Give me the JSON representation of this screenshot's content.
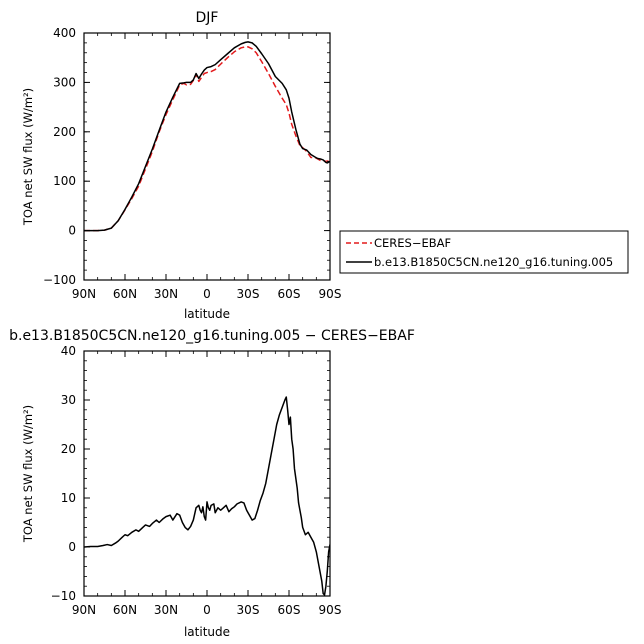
{
  "chart_data": [
    {
      "type": "line",
      "title": "DJF",
      "xlabel": "latitude",
      "ylabel": "TOA net SW flux (W/m²)",
      "xlim": [
        90,
        -90
      ],
      "ylim": [
        -100,
        400
      ],
      "xticks": [
        90,
        60,
        30,
        0,
        -30,
        -60,
        -90
      ],
      "xtick_labels": [
        "90N",
        "60N",
        "30N",
        "0",
        "30S",
        "60S",
        "90S"
      ],
      "yticks": [
        -100,
        0,
        100,
        200,
        300,
        400
      ],
      "ytick_labels": [
        "−100",
        "0",
        "100",
        "200",
        "300",
        "400"
      ],
      "grid": false,
      "legend_position": "right, outside lower",
      "series": [
        {
          "name": "CERES−EBAF",
          "color": "#e31a1c",
          "style": "dashed",
          "x": [
            90,
            85,
            80,
            75,
            70,
            65,
            60,
            55,
            50,
            45,
            40,
            35,
            30,
            25,
            20,
            17,
            15,
            12,
            10,
            8,
            6,
            4,
            2,
            0,
            -3,
            -6,
            -10,
            -15,
            -20,
            -25,
            -28,
            -30,
            -33,
            -36,
            -40,
            -45,
            -50,
            -55,
            -58,
            -60,
            -62,
            -65,
            -68,
            -70,
            -73,
            -76,
            -79,
            -81,
            -83,
            -85,
            -87,
            -88,
            -90
          ],
          "y": [
            0,
            0,
            0,
            1,
            5,
            20,
            42,
            65,
            90,
            125,
            160,
            200,
            235,
            265,
            295,
            298,
            295,
            296,
            304,
            316,
            302,
            310,
            318,
            320,
            322,
            326,
            337,
            350,
            362,
            370,
            372,
            372,
            368,
            360,
            342,
            318,
            292,
            268,
            255,
            238,
            215,
            192,
            172,
            168,
            160,
            148,
            148,
            145,
            142,
            142,
            140,
            141,
            139
          ]
        },
        {
          "name": "b.e13.B1850C5CN.ne120_g16.tuning.005",
          "color": "#000000",
          "style": "solid",
          "x": [
            90,
            85,
            80,
            75,
            70,
            65,
            60,
            55,
            50,
            45,
            40,
            35,
            30,
            25,
            20,
            17,
            15,
            12,
            10,
            8,
            6,
            4,
            2,
            0,
            -3,
            -6,
            -10,
            -15,
            -20,
            -25,
            -28,
            -30,
            -33,
            -36,
            -40,
            -45,
            -50,
            -55,
            -58,
            -60,
            -62,
            -65,
            -68,
            -70,
            -73,
            -76,
            -79,
            -81,
            -83,
            -85,
            -87,
            -88,
            -90
          ],
          "y": [
            0,
            0,
            0,
            1,
            5,
            20,
            43,
            68,
            95,
            130,
            165,
            203,
            240,
            270,
            298,
            299,
            300,
            300,
            305,
            318,
            308,
            317,
            325,
            330,
            332,
            336,
            346,
            358,
            370,
            378,
            381,
            382,
            380,
            373,
            358,
            338,
            312,
            298,
            285,
            268,
            240,
            205,
            175,
            166,
            163,
            154,
            149,
            146,
            145,
            143,
            138,
            137,
            140
          ]
        }
      ]
    },
    {
      "type": "line",
      "title": "b.e13.B1850C5CN.ne120_g16.tuning.005 − CERES−EBAF",
      "xlabel": "latitude",
      "ylabel": "TOA net SW flux (W/m²)",
      "xlim": [
        90,
        -90
      ],
      "ylim": [
        -10,
        40
      ],
      "xticks": [
        90,
        60,
        30,
        0,
        -30,
        -60,
        -90
      ],
      "xtick_labels": [
        "90N",
        "60N",
        "30N",
        "0",
        "30S",
        "60S",
        "90S"
      ],
      "yticks": [
        -10,
        0,
        10,
        20,
        30,
        40
      ],
      "ytick_labels": [
        "−10",
        "0",
        "10",
        "20",
        "30",
        "40"
      ],
      "grid": false,
      "series": [
        {
          "color": "#000000",
          "style": "solid",
          "x": [
            90,
            85,
            80,
            76,
            73,
            70,
            67,
            65,
            62,
            60,
            58,
            55,
            52,
            50,
            47,
            45,
            42,
            40,
            37,
            35,
            32,
            30,
            27,
            25,
            22,
            20,
            18,
            16,
            14,
            12,
            10,
            8,
            6,
            5,
            4,
            3,
            2,
            1,
            0,
            -1,
            -2,
            -3,
            -5,
            -6,
            -8,
            -10,
            -12,
            -14,
            -16,
            -18,
            -20,
            -22,
            -25,
            -27,
            -29,
            -31,
            -33,
            -35,
            -37,
            -39,
            -41,
            -43,
            -45,
            -47,
            -49,
            -51,
            -53,
            -55,
            -57,
            -58,
            -59,
            -60,
            -61,
            -62,
            -63,
            -64,
            -65,
            -66,
            -67,
            -68,
            -69,
            -70,
            -72,
            -74,
            -76,
            -78,
            -80,
            -82,
            -84,
            -85,
            -86,
            -87,
            -88,
            -89,
            -90
          ],
          "y": [
            0,
            0.1,
            0.1,
            0.3,
            0.5,
            0.3,
            0.8,
            1.2,
            2.0,
            2.5,
            2.3,
            3.0,
            3.5,
            3.2,
            4.0,
            4.5,
            4.2,
            4.8,
            5.5,
            5.0,
            5.8,
            6.2,
            6.5,
            5.5,
            6.8,
            6.5,
            5.0,
            4.0,
            3.5,
            4.2,
            5.5,
            8.0,
            8.5,
            7.5,
            7.0,
            8.2,
            6.2,
            5.5,
            9.2,
            8.0,
            7.5,
            8.5,
            8.8,
            7.0,
            8.0,
            7.5,
            8.0,
            8.5,
            7.2,
            7.8,
            8.2,
            8.8,
            9.2,
            9.0,
            7.5,
            6.5,
            5.5,
            5.8,
            7.5,
            9.5,
            11.0,
            13.0,
            16.0,
            19.0,
            22.0,
            25.0,
            27.0,
            28.5,
            30.0,
            30.6,
            28.0,
            25.0,
            26.5,
            22.0,
            20.0,
            16.0,
            14.0,
            12.0,
            9.0,
            7.5,
            6.0,
            4.0,
            2.5,
            3.0,
            2.0,
            1.0,
            -1.0,
            -4.0,
            -7.0,
            -9.5,
            -9.8,
            -8.0,
            -5.0,
            -1.0,
            0.5
          ]
        }
      ]
    }
  ],
  "legend": {
    "entries": [
      "CERES−EBAF",
      "b.e13.B1850C5CN.ne120_g16.tuning.005"
    ]
  }
}
